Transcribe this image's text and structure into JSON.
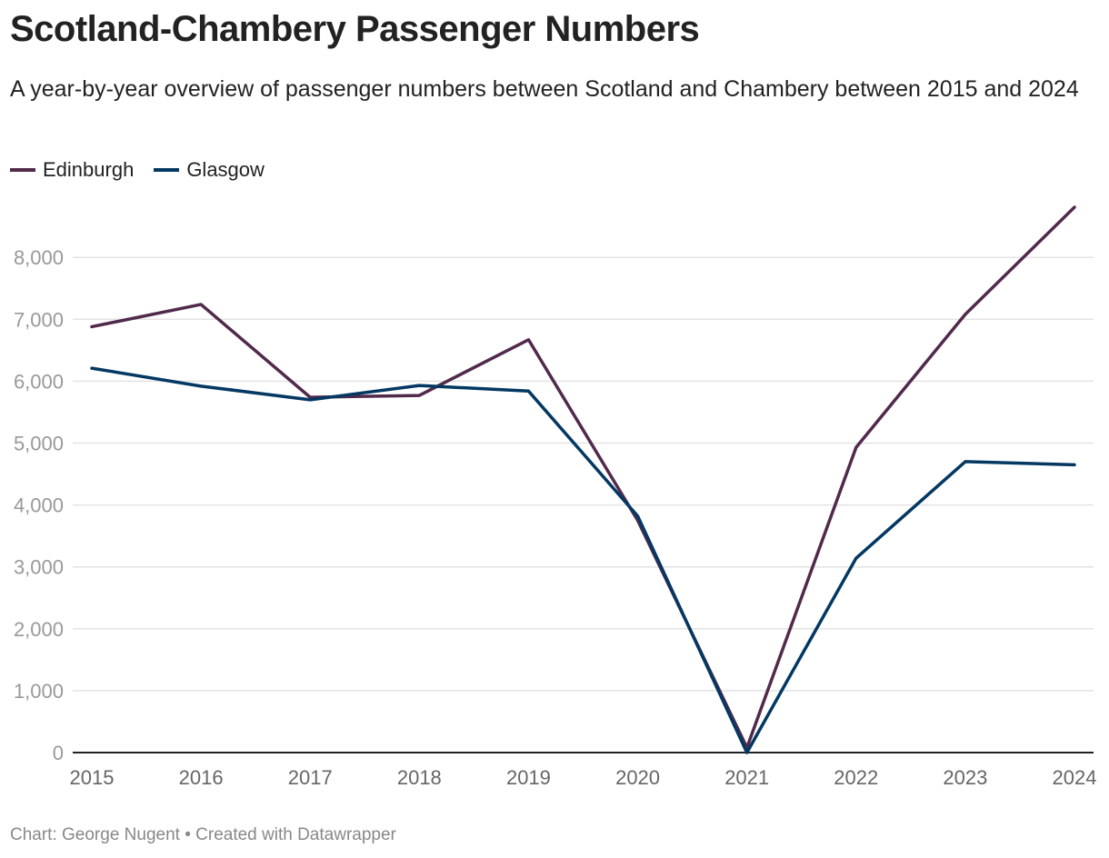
{
  "title": "Scotland-Chambery Passenger Numbers",
  "subtitle": "A year-by-year overview of passenger numbers between Scotland and Chambery between 2015 and 2024",
  "footer": "Chart: George Nugent • Created with Datawrapper",
  "chart_data": {
    "type": "line",
    "x": [
      "2015",
      "2016",
      "2017",
      "2018",
      "2019",
      "2020",
      "2021",
      "2022",
      "2023",
      "2024"
    ],
    "yticks": [
      "0",
      "1,000",
      "2,000",
      "3,000",
      "4,000",
      "5,000",
      "6,000",
      "7,000",
      "8,000"
    ],
    "ylim": [
      0,
      9000
    ],
    "grid": true,
    "legend_position": "top-left",
    "series": [
      {
        "name": "Edinburgh",
        "color": "#512a4b",
        "values": [
          6880,
          7240,
          5740,
          5770,
          6670,
          3750,
          80,
          4930,
          7080,
          8810
        ]
      },
      {
        "name": "Glasgow",
        "color": "#033863",
        "values": [
          6210,
          5920,
          5700,
          5930,
          5840,
          3820,
          0,
          3140,
          4700,
          4650
        ]
      }
    ]
  }
}
